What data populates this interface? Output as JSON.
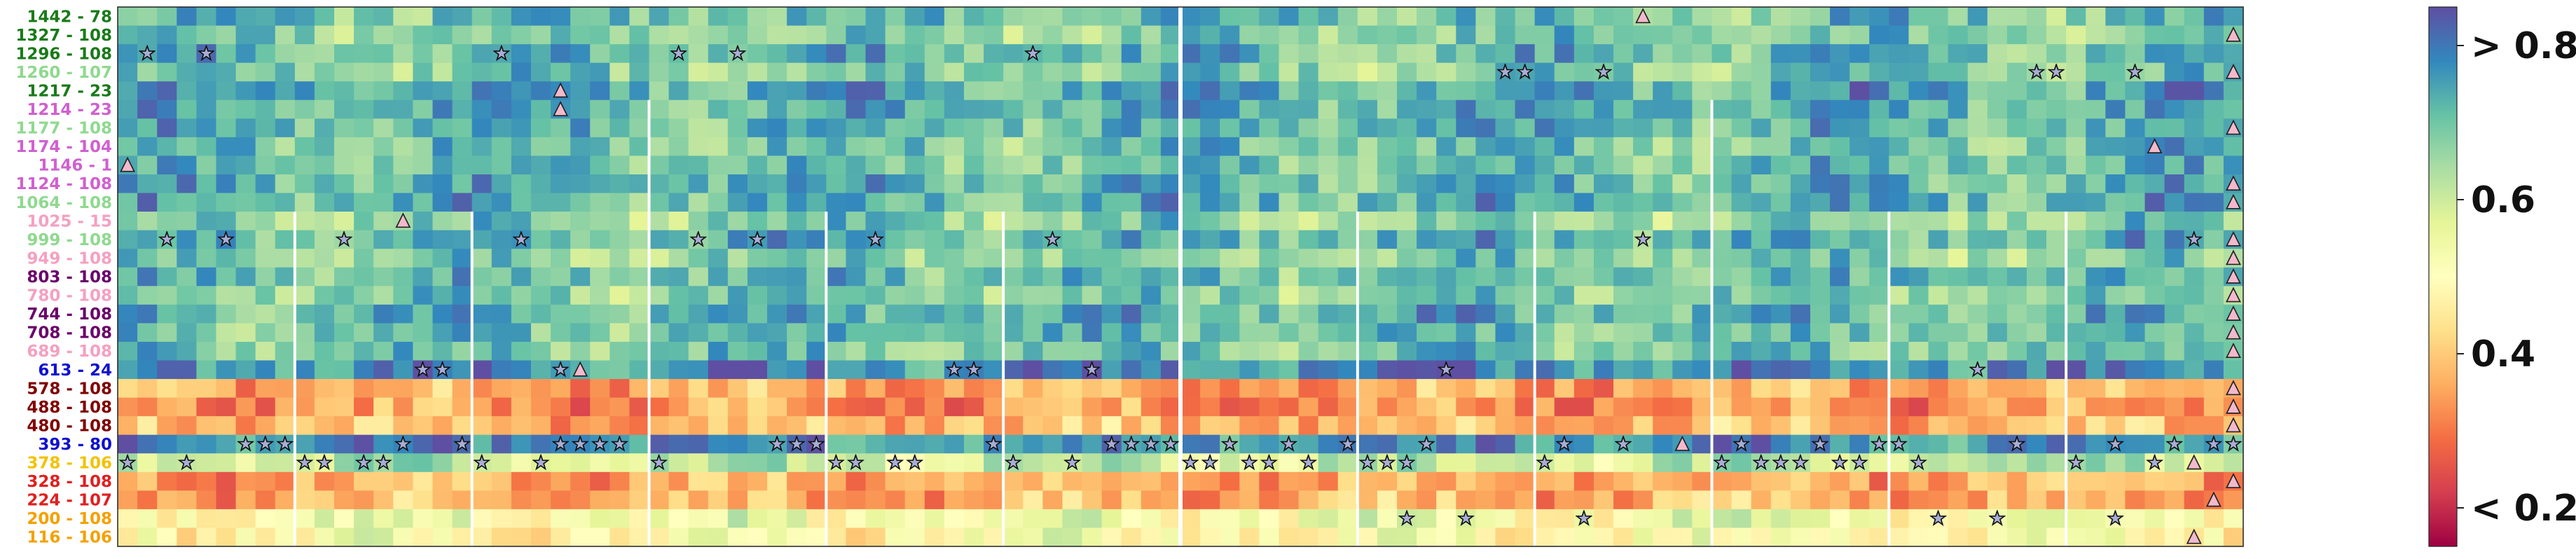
{
  "chart_data": {
    "type": "heatmap",
    "title": "",
    "xlabel": "",
    "ylabel": "",
    "row_labels": [
      {
        "text": "1442 - 78",
        "color": "#1a7a1a"
      },
      {
        "text": "1327 - 108",
        "color": "#1a7a1a"
      },
      {
        "text": "1296 - 108",
        "color": "#1a7a1a"
      },
      {
        "text": "1260 - 107",
        "color": "#8fd98f"
      },
      {
        "text": "1217 - 23",
        "color": "#1a7a1a"
      },
      {
        "text": "1214 - 23",
        "color": "#d060d0"
      },
      {
        "text": "1177 - 108",
        "color": "#8fd98f"
      },
      {
        "text": "1174 - 104",
        "color": "#d060d0"
      },
      {
        "text": "1146 - 1",
        "color": "#d060d0"
      },
      {
        "text": "1124 - 108",
        "color": "#d060d0"
      },
      {
        "text": "1064 - 108",
        "color": "#8fd98f"
      },
      {
        "text": "1025 - 15",
        "color": "#f5a0c0"
      },
      {
        "text": "999 - 108",
        "color": "#8fd98f"
      },
      {
        "text": "949 - 108",
        "color": "#f5a0c0"
      },
      {
        "text": "803 - 108",
        "color": "#6a006a"
      },
      {
        "text": "780 - 108",
        "color": "#f5a0c0"
      },
      {
        "text": "744 - 108",
        "color": "#6a006a"
      },
      {
        "text": "708 - 108",
        "color": "#6a006a"
      },
      {
        "text": "689 - 108",
        "color": "#f5a0c0"
      },
      {
        "text": "613 - 24",
        "color": "#1010d0"
      },
      {
        "text": "578 - 108",
        "color": "#800000"
      },
      {
        "text": "488 - 108",
        "color": "#800000"
      },
      {
        "text": "480 - 108",
        "color": "#800000"
      },
      {
        "text": "393 - 80",
        "color": "#1010d0"
      },
      {
        "text": "378 - 106",
        "color": "#f2c200"
      },
      {
        "text": "328 - 108",
        "color": "#e02020"
      },
      {
        "text": "224 - 107",
        "color": "#e02020"
      },
      {
        "text": "200 - 108",
        "color": "#f5a000"
      },
      {
        "text": "116 - 106",
        "color": "#f5a000"
      }
    ],
    "n_columns": 108,
    "colorbar": {
      "colormap": "Spectral",
      "range": [
        0.15,
        0.85
      ],
      "tick_values": [
        0.2,
        0.4,
        0.6,
        0.8
      ],
      "tick_labels": [
        "< 0.2",
        "0.4",
        "0.6",
        "> 0.8"
      ]
    },
    "band_levels": [
      0.7,
      0.68,
      0.71,
      0.68,
      0.74,
      0.73,
      0.72,
      0.7,
      0.7,
      0.72,
      0.73,
      0.67,
      0.72,
      0.67,
      0.71,
      0.68,
      0.72,
      0.7,
      0.69,
      0.78,
      0.36,
      0.34,
      0.38,
      0.77,
      0.6,
      0.36,
      0.36,
      0.53,
      0.5
    ],
    "markers": {
      "stars": [
        [
          2,
          1
        ],
        [
          2,
          4
        ],
        [
          2,
          19
        ],
        [
          2,
          28
        ],
        [
          2,
          31
        ],
        [
          2,
          46
        ],
        [
          3,
          70
        ],
        [
          3,
          71
        ],
        [
          3,
          75
        ],
        [
          3,
          97
        ],
        [
          3,
          98
        ],
        [
          3,
          102
        ],
        [
          12,
          2
        ],
        [
          12,
          5
        ],
        [
          12,
          11
        ],
        [
          12,
          20
        ],
        [
          12,
          29
        ],
        [
          12,
          32
        ],
        [
          12,
          38
        ],
        [
          12,
          47
        ],
        [
          12,
          77
        ],
        [
          12,
          105
        ],
        [
          19,
          15
        ],
        [
          19,
          16
        ],
        [
          19,
          22
        ],
        [
          19,
          42
        ],
        [
          19,
          43
        ],
        [
          19,
          49
        ],
        [
          19,
          67
        ],
        [
          19,
          94
        ],
        [
          23,
          6
        ],
        [
          23,
          7
        ],
        [
          23,
          8
        ],
        [
          23,
          14
        ],
        [
          23,
          17
        ],
        [
          23,
          22
        ],
        [
          23,
          23
        ],
        [
          23,
          24
        ],
        [
          23,
          25
        ],
        [
          23,
          33
        ],
        [
          23,
          34
        ],
        [
          23,
          35
        ],
        [
          23,
          44
        ],
        [
          23,
          50
        ],
        [
          23,
          51
        ],
        [
          23,
          52
        ],
        [
          23,
          53
        ],
        [
          23,
          56
        ],
        [
          23,
          59
        ],
        [
          23,
          62
        ],
        [
          23,
          66
        ],
        [
          23,
          73
        ],
        [
          23,
          76
        ],
        [
          23,
          82
        ],
        [
          23,
          86
        ],
        [
          23,
          89
        ],
        [
          23,
          90
        ],
        [
          23,
          96
        ],
        [
          23,
          101
        ],
        [
          23,
          104
        ],
        [
          23,
          106
        ],
        [
          23,
          107
        ],
        [
          24,
          0
        ],
        [
          24,
          3
        ],
        [
          24,
          9
        ],
        [
          24,
          10
        ],
        [
          24,
          12
        ],
        [
          24,
          13
        ],
        [
          24,
          18
        ],
        [
          24,
          21
        ],
        [
          24,
          27
        ],
        [
          24,
          36
        ],
        [
          24,
          37
        ],
        [
          24,
          39
        ],
        [
          24,
          40
        ],
        [
          24,
          45
        ],
        [
          24,
          48
        ],
        [
          24,
          54
        ],
        [
          24,
          55
        ],
        [
          24,
          57
        ],
        [
          24,
          58
        ],
        [
          24,
          60
        ],
        [
          24,
          63
        ],
        [
          24,
          64
        ],
        [
          24,
          65
        ],
        [
          24,
          72
        ],
        [
          24,
          81
        ],
        [
          24,
          83
        ],
        [
          24,
          84
        ],
        [
          24,
          85
        ],
        [
          24,
          87
        ],
        [
          24,
          88
        ],
        [
          24,
          91
        ],
        [
          24,
          99
        ],
        [
          24,
          103
        ],
        [
          27,
          65
        ],
        [
          27,
          68
        ],
        [
          27,
          74
        ],
        [
          27,
          92
        ],
        [
          27,
          95
        ],
        [
          27,
          101
        ]
      ],
      "triangles": [
        [
          0,
          77
        ],
        [
          1,
          107
        ],
        [
          3,
          107
        ],
        [
          4,
          22
        ],
        [
          5,
          22
        ],
        [
          6,
          107
        ],
        [
          7,
          103
        ],
        [
          8,
          0
        ],
        [
          9,
          107
        ],
        [
          10,
          107
        ],
        [
          11,
          14
        ],
        [
          12,
          107
        ],
        [
          13,
          107
        ],
        [
          14,
          107
        ],
        [
          15,
          107
        ],
        [
          16,
          107
        ],
        [
          17,
          107
        ],
        [
          18,
          107
        ],
        [
          19,
          23
        ],
        [
          20,
          107
        ],
        [
          21,
          107
        ],
        [
          22,
          107
        ],
        [
          23,
          79
        ],
        [
          24,
          105
        ],
        [
          25,
          107
        ],
        [
          26,
          106
        ],
        [
          28,
          105
        ]
      ]
    },
    "group_separators": [
      {
        "column": 9,
        "from_row": 11
      },
      {
        "column": 18,
        "from_row": 11
      },
      {
        "column": 27,
        "from_row": 5
      },
      {
        "column": 36,
        "from_row": 11
      },
      {
        "column": 45,
        "from_row": 11
      },
      {
        "column": 54,
        "from_row": 0
      },
      {
        "column": 63,
        "from_row": 11
      },
      {
        "column": 72,
        "from_row": 11
      },
      {
        "column": 81,
        "from_row": 5
      },
      {
        "column": 90,
        "from_row": 11
      },
      {
        "column": 99,
        "from_row": 11
      }
    ]
  }
}
